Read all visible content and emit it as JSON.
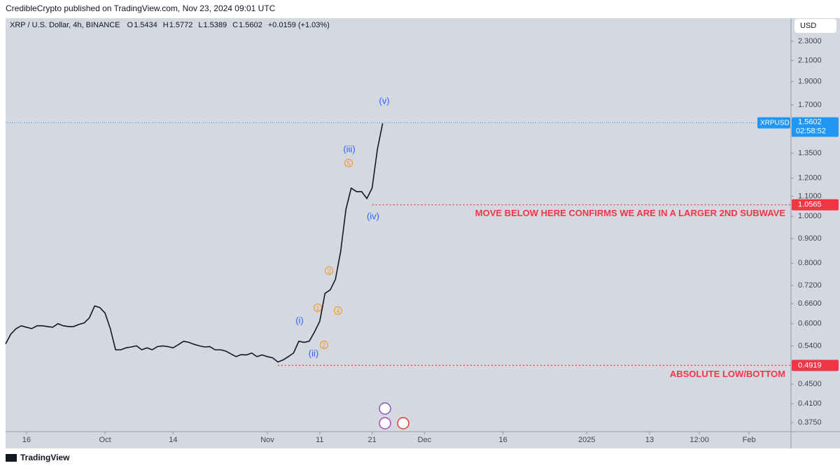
{
  "header": {
    "text": "CredibleCrypto published on TradingView.com, Nov 23, 2024 09:01 UTC"
  },
  "footer": {
    "brand": "TradingView"
  },
  "chart_data": {
    "type": "line",
    "symbol": "XRP / U.S. Dollar, 4h, BINANCE",
    "ohlc": [
      {
        "label": "O",
        "value": 1.5434
      },
      {
        "label": "H",
        "value": 1.5772
      },
      {
        "label": "L",
        "value": 1.5389
      },
      {
        "label": "C",
        "value": 1.5602
      }
    ],
    "change": "+0.0159 (+1.03%)",
    "currency": "USD",
    "log_scale": true,
    "grid": false,
    "x": [
      "2024-09-12",
      "2024-09-13",
      "2024-09-14",
      "2024-09-15",
      "2024-09-16",
      "2024-09-17",
      "2024-09-18",
      "2024-09-19",
      "2024-09-20",
      "2024-09-21",
      "2024-09-22",
      "2024-09-23",
      "2024-09-24",
      "2024-09-25",
      "2024-09-26",
      "2024-09-27",
      "2024-09-28",
      "2024-09-29",
      "2024-09-30",
      "2024-10-01",
      "2024-10-02",
      "2024-10-03",
      "2024-10-04",
      "2024-10-05",
      "2024-10-06",
      "2024-10-07",
      "2024-10-08",
      "2024-10-09",
      "2024-10-10",
      "2024-10-11",
      "2024-10-12",
      "2024-10-13",
      "2024-10-14",
      "2024-10-15",
      "2024-10-16",
      "2024-10-17",
      "2024-10-18",
      "2024-10-19",
      "2024-10-20",
      "2024-10-21",
      "2024-10-22",
      "2024-10-23",
      "2024-10-24",
      "2024-10-25",
      "2024-10-26",
      "2024-10-27",
      "2024-10-28",
      "2024-10-29",
      "2024-10-30",
      "2024-10-31",
      "2024-11-01",
      "2024-11-02",
      "2024-11-03",
      "2024-11-04",
      "2024-11-05",
      "2024-11-06",
      "2024-11-07",
      "2024-11-08",
      "2024-11-09",
      "2024-11-10",
      "2024-11-11",
      "2024-11-12",
      "2024-11-13",
      "2024-11-14",
      "2024-11-15",
      "2024-11-16",
      "2024-11-17",
      "2024-11-18",
      "2024-11-19",
      "2024-11-20",
      "2024-11-21",
      "2024-11-22",
      "2024-11-23"
    ],
    "series": [
      {
        "name": "XRPUSD",
        "color": "#131722",
        "values": [
          0.545,
          0.571,
          0.586,
          0.594,
          0.59,
          0.586,
          0.594,
          0.594,
          0.592,
          0.59,
          0.6,
          0.594,
          0.592,
          0.592,
          0.598,
          0.602,
          0.617,
          0.653,
          0.648,
          0.631,
          0.586,
          0.53,
          0.53,
          0.535,
          0.537,
          0.54,
          0.53,
          0.535,
          0.53,
          0.538,
          0.54,
          0.538,
          0.535,
          0.543,
          0.552,
          0.549,
          0.544,
          0.54,
          0.537,
          0.538,
          0.53,
          0.53,
          0.527,
          0.52,
          0.513,
          0.518,
          0.517,
          0.522,
          0.513,
          0.517,
          0.513,
          0.51,
          0.5,
          0.505,
          0.513,
          0.522,
          0.552,
          0.549,
          0.552,
          0.577,
          0.607,
          0.693,
          0.705,
          0.741,
          0.847,
          1.034,
          1.144,
          1.125,
          1.125,
          1.089,
          1.144,
          1.375,
          1.556
        ]
      }
    ],
    "last_price": {
      "value": 1.5602,
      "countdown": "02:58:52",
      "color": "#2196f3"
    },
    "levels": [
      {
        "value": 1.0565,
        "text": "MOVE BELOW HERE CONFIRMS WE ARE IN A LARGER 2ND SUBWAVE",
        "color": "#f23645",
        "from": "2024-11-21"
      },
      {
        "value": 0.4919,
        "text": "ABSOLUTE LOW/BOTTOM",
        "color": "#f23645",
        "from": "2024-11-03"
      }
    ],
    "wave_labels": [
      "(i)",
      "(ii)",
      "(iii)",
      "(iv)",
      "(v)"
    ],
    "subwave_labels": [
      "1",
      "2",
      "3",
      "4",
      "5"
    ],
    "ylim": [
      0.359,
      2.568
    ],
    "yticks": [
      {
        "value": 2.3,
        "label": "2.3000"
      },
      {
        "value": 2.1,
        "label": "2.1000"
      },
      {
        "value": 1.9,
        "label": "1.9000"
      },
      {
        "value": 1.7,
        "label": "1.7000"
      },
      {
        "value": 1.35,
        "label": "1.3500"
      },
      {
        "value": 1.2,
        "label": "1.2000"
      },
      {
        "value": 1.1,
        "label": "1.1000"
      },
      {
        "value": 1,
        "label": "1.0000"
      },
      {
        "value": 0.9,
        "label": "0.9000"
      },
      {
        "value": 0.8,
        "label": "0.8000"
      },
      {
        "value": 0.72,
        "label": "0.7200"
      },
      {
        "value": 0.66,
        "label": "0.6600"
      },
      {
        "value": 0.6,
        "label": "0.6000"
      },
      {
        "value": 0.54,
        "label": "0.5400"
      },
      {
        "value": 0.45,
        "label": "0.4500"
      },
      {
        "value": 0.41,
        "label": "0.4100"
      },
      {
        "value": 0.375,
        "label": "0.3750"
      }
    ],
    "xlim": [
      "2024-09-12",
      "2025-02-09"
    ],
    "xticks": [
      {
        "value": "2024-09-16",
        "label": "16"
      },
      {
        "value": "2024-10-01",
        "label": "Oct"
      },
      {
        "value": "2024-10-14",
        "label": "14"
      },
      {
        "value": "2024-11-01",
        "label": "Nov"
      },
      {
        "value": "2024-11-11",
        "label": "11"
      },
      {
        "value": "2024-11-21",
        "label": "21"
      },
      {
        "value": "2024-12-01",
        "label": "Dec"
      },
      {
        "value": "2024-12-16",
        "label": "16"
      },
      {
        "value": "2025-01-01",
        "label": "2025"
      },
      {
        "value": "2025-01-13",
        "label": "13"
      },
      {
        "value": "2025-01-22T12:00",
        "label": "12:00"
      },
      {
        "value": "2025-02-01",
        "label": "Feb"
      }
    ]
  }
}
